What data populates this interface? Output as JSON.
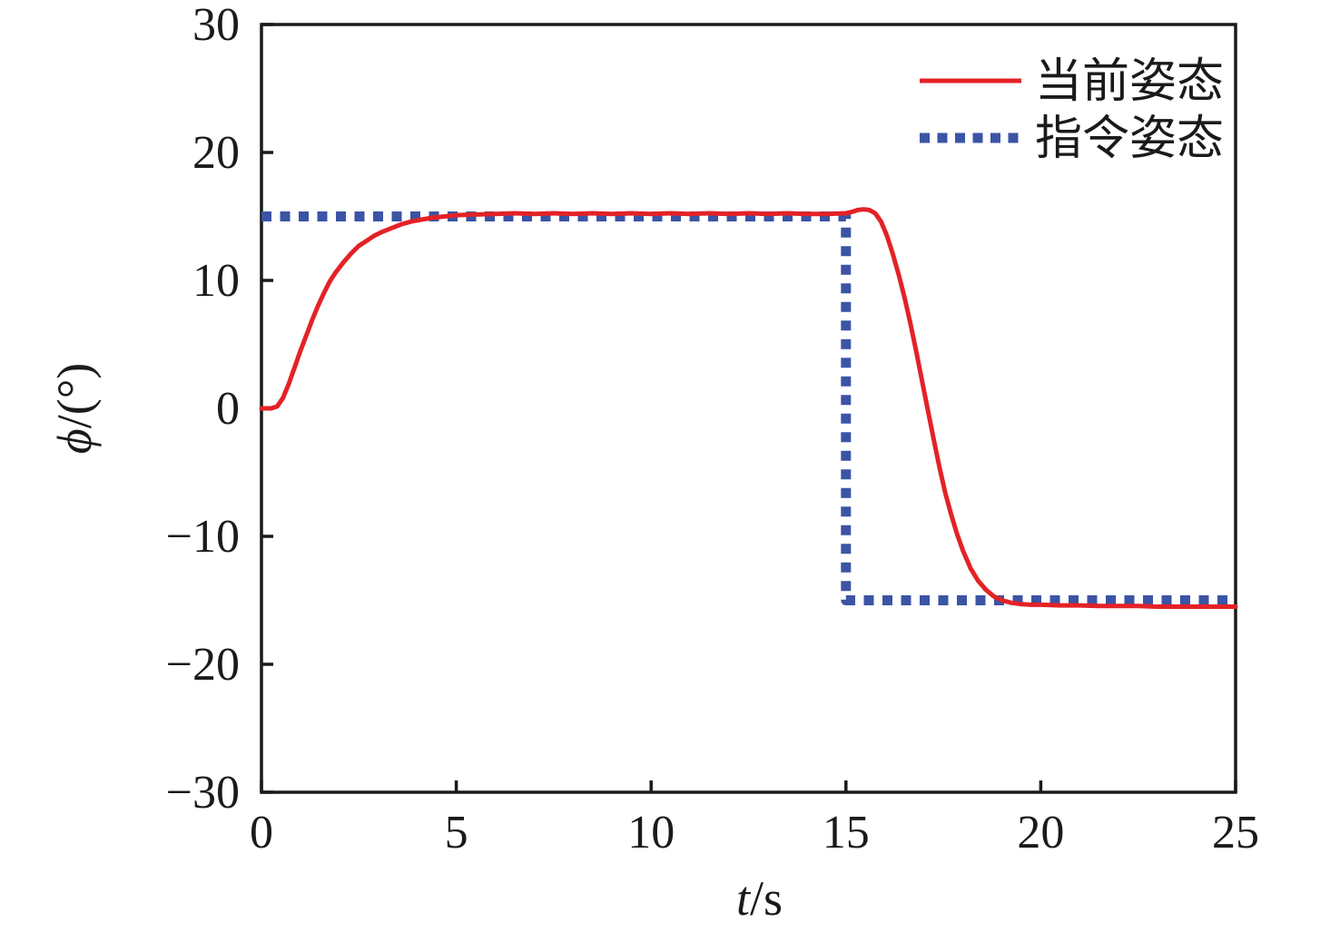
{
  "figure": {
    "background": "#ffffff",
    "axis_color": "#1a1a1a",
    "tick_label_color": "#1a1a1a"
  },
  "chart_data": {
    "type": "line",
    "title": "",
    "xlabel": "t/s",
    "ylabel": "ϕ/(°)",
    "xlim": [
      0,
      25
    ],
    "ylim": [
      -30,
      30
    ],
    "xticks": [
      0,
      5,
      10,
      15,
      20,
      25
    ],
    "yticks": [
      30,
      20,
      10,
      0,
      -10,
      -20,
      -30
    ],
    "xtick_labels": [
      "0",
      "5",
      "10",
      "15",
      "20",
      "25"
    ],
    "ytick_labels": [
      "30",
      "20",
      "10",
      "0",
      "−10",
      "−20",
      "−30"
    ],
    "grid": false,
    "legend": {
      "position": "top-right-inside",
      "frame": false
    },
    "series": [
      {
        "name": "当前姿态",
        "style": "solid",
        "color": "#e32227",
        "line_width": 5,
        "points": [
          [
            0,
            0
          ],
          [
            0.25,
            0
          ],
          [
            0.4,
            0.15
          ],
          [
            0.55,
            0.8
          ],
          [
            0.7,
            1.9
          ],
          [
            0.85,
            3.2
          ],
          [
            1.0,
            4.5
          ],
          [
            1.15,
            5.7
          ],
          [
            1.3,
            6.9
          ],
          [
            1.45,
            8.0
          ],
          [
            1.6,
            9.0
          ],
          [
            1.75,
            9.9
          ],
          [
            1.9,
            10.6
          ],
          [
            2.1,
            11.4
          ],
          [
            2.3,
            12.1
          ],
          [
            2.5,
            12.7
          ],
          [
            2.7,
            13.1
          ],
          [
            2.9,
            13.5
          ],
          [
            3.1,
            13.8
          ],
          [
            3.35,
            14.1
          ],
          [
            3.6,
            14.4
          ],
          [
            3.85,
            14.6
          ],
          [
            4.1,
            14.75
          ],
          [
            4.4,
            14.9
          ],
          [
            4.7,
            15.0
          ],
          [
            5.0,
            15.1
          ],
          [
            5.5,
            15.15
          ],
          [
            6,
            15.2
          ],
          [
            6.5,
            15.25
          ],
          [
            7,
            15.2
          ],
          [
            7.5,
            15.25
          ],
          [
            8,
            15.2
          ],
          [
            8.5,
            15.25
          ],
          [
            9,
            15.2
          ],
          [
            9.5,
            15.25
          ],
          [
            10,
            15.2
          ],
          [
            10.5,
            15.25
          ],
          [
            11,
            15.2
          ],
          [
            11.5,
            15.25
          ],
          [
            12,
            15.2
          ],
          [
            12.5,
            15.25
          ],
          [
            13,
            15.2
          ],
          [
            13.5,
            15.25
          ],
          [
            14,
            15.2
          ],
          [
            14.5,
            15.2
          ],
          [
            15,
            15.25
          ],
          [
            15.15,
            15.35
          ],
          [
            15.3,
            15.5
          ],
          [
            15.45,
            15.55
          ],
          [
            15.6,
            15.5
          ],
          [
            15.75,
            15.25
          ],
          [
            15.9,
            14.6
          ],
          [
            16.05,
            13.5
          ],
          [
            16.2,
            12.1
          ],
          [
            16.35,
            10.5
          ],
          [
            16.5,
            8.7
          ],
          [
            16.65,
            6.7
          ],
          [
            16.8,
            4.5
          ],
          [
            16.95,
            2.2
          ],
          [
            17.1,
            -0.1
          ],
          [
            17.25,
            -2.4
          ],
          [
            17.4,
            -4.6
          ],
          [
            17.55,
            -6.6
          ],
          [
            17.7,
            -8.3
          ],
          [
            17.85,
            -9.8
          ],
          [
            18.0,
            -11.1
          ],
          [
            18.2,
            -12.5
          ],
          [
            18.4,
            -13.5
          ],
          [
            18.6,
            -14.2
          ],
          [
            18.8,
            -14.7
          ],
          [
            19.0,
            -15.0
          ],
          [
            19.25,
            -15.2
          ],
          [
            19.5,
            -15.3
          ],
          [
            19.75,
            -15.35
          ],
          [
            20,
            -15.35
          ],
          [
            20.5,
            -15.4
          ],
          [
            21,
            -15.4
          ],
          [
            21.5,
            -15.45
          ],
          [
            22,
            -15.45
          ],
          [
            22.5,
            -15.45
          ],
          [
            23,
            -15.5
          ],
          [
            23.5,
            -15.5
          ],
          [
            24,
            -15.5
          ],
          [
            24.5,
            -15.5
          ],
          [
            25,
            -15.5
          ]
        ]
      },
      {
        "name": "指令姿态",
        "style": "dotted",
        "color": "#3b54a5",
        "line_width": 11,
        "points": [
          [
            0,
            15
          ],
          [
            15,
            15
          ],
          [
            15,
            -15
          ],
          [
            25,
            -15
          ]
        ]
      }
    ]
  }
}
